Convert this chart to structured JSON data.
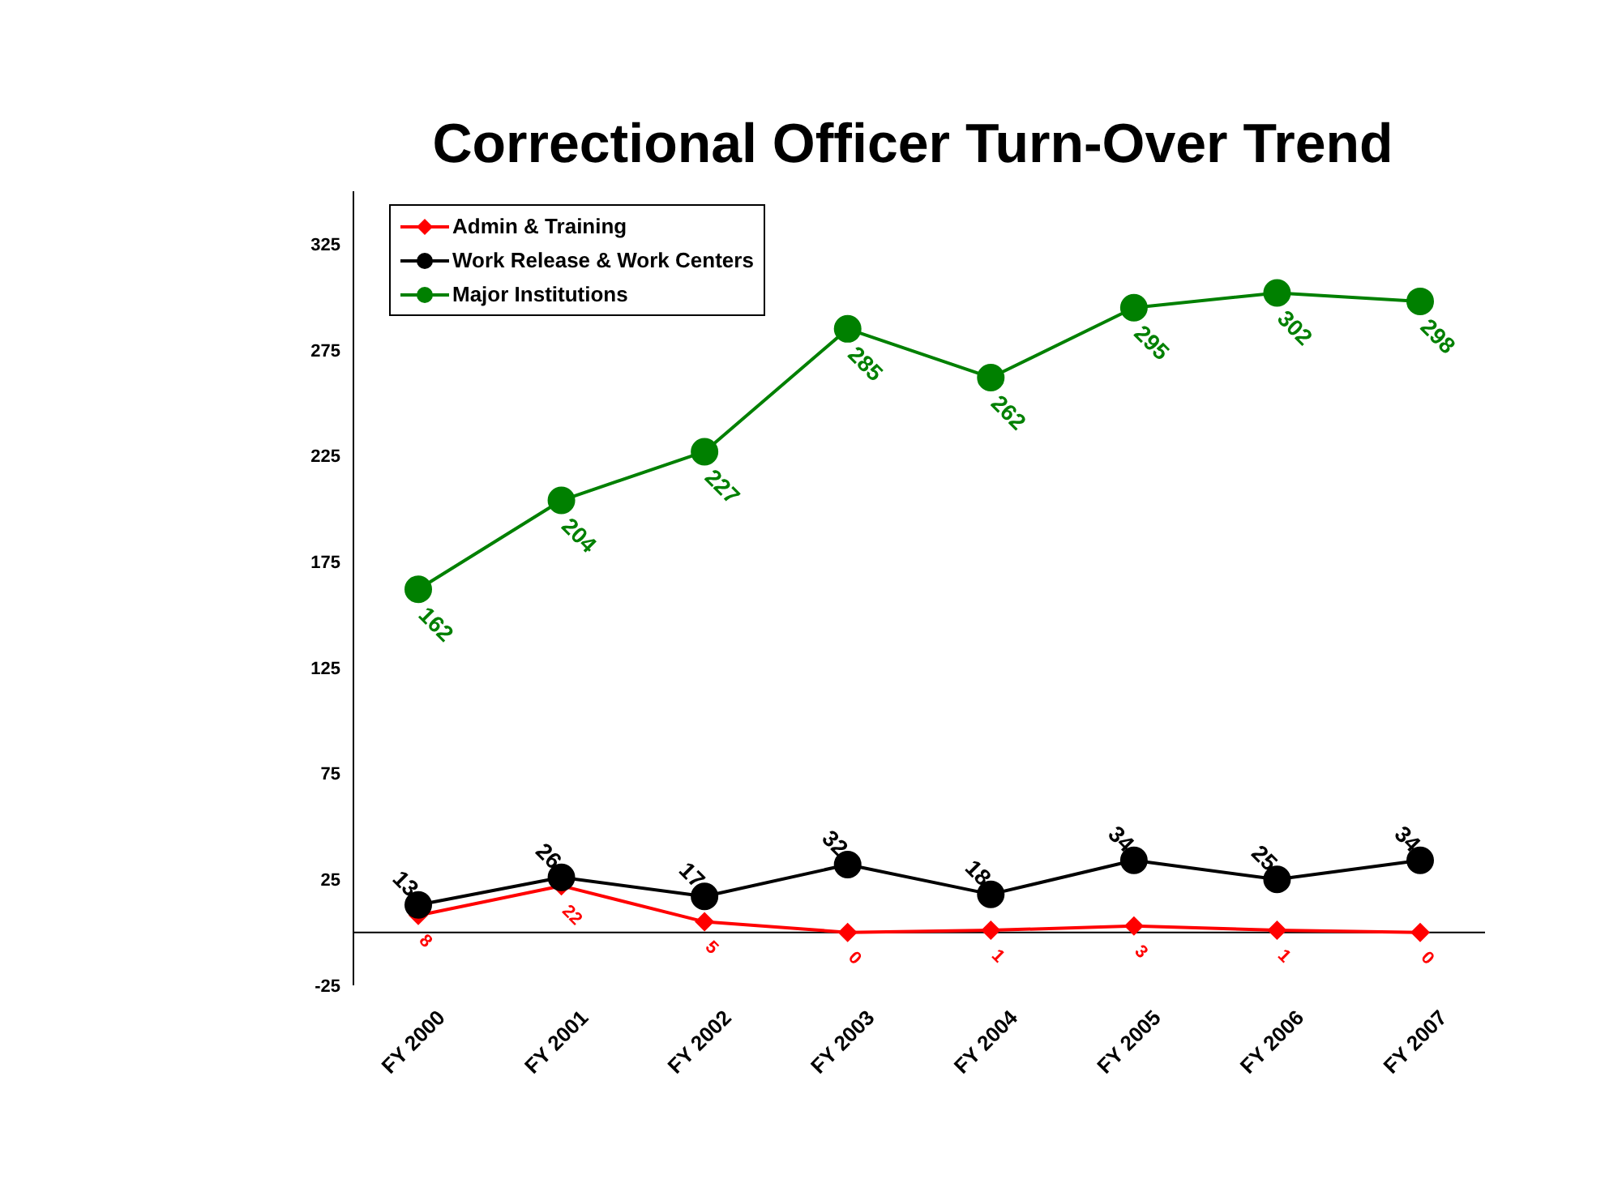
{
  "chart_data": {
    "type": "line",
    "title": "Correctional Officer Turn-Over Trend",
    "categories": [
      "FY 2000",
      "FY 2001",
      "FY 2002",
      "FY 2003",
      "FY 2004",
      "FY 2005",
      "FY 2006",
      "FY 2007"
    ],
    "series": [
      {
        "name": "Admin & Training",
        "color": "#ff0000",
        "marker": "diamond",
        "values": [
          8,
          22,
          5,
          0,
          1,
          3,
          1,
          0
        ]
      },
      {
        "name": "Work Release & Work Centers",
        "color": "#000000",
        "marker": "circle",
        "values": [
          13,
          26,
          17,
          32,
          18,
          34,
          25,
          34
        ]
      },
      {
        "name": "Major Institutions",
        "color": "#008000",
        "marker": "circle",
        "values": [
          162,
          204,
          227,
          285,
          262,
          295,
          302,
          298
        ]
      }
    ],
    "ylim": [
      -25,
      350
    ],
    "yticks": [
      -25,
      25,
      75,
      125,
      175,
      225,
      275,
      325
    ],
    "grid": false,
    "legend": "top left",
    "data_labels": true,
    "line_style": "solid"
  }
}
